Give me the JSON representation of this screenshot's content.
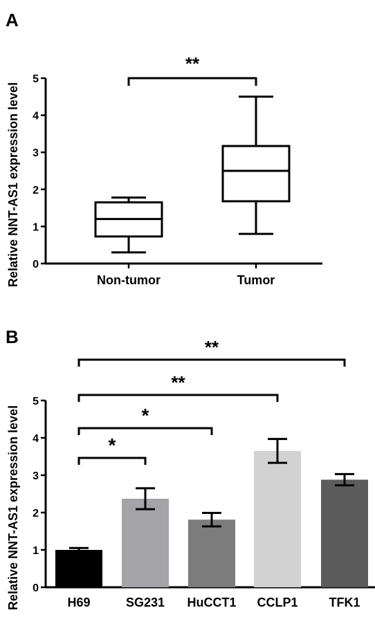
{
  "panels": {
    "a_label": "A",
    "b_label": "B"
  },
  "chart_data": [
    {
      "type": "box",
      "ylabel": "Relative NNT-AS1 expression level",
      "ylim": [
        0,
        5
      ],
      "yticks": [
        "0",
        "1",
        "2",
        "3",
        "4",
        "5"
      ],
      "categories": [
        "Non-tumor",
        "Tumor"
      ],
      "boxes": [
        {
          "category": "Non-tumor",
          "min": 0.3,
          "q1": 0.73,
          "median": 1.2,
          "q3": 1.65,
          "max": 1.78
        },
        {
          "category": "Tumor",
          "min": 0.8,
          "q1": 1.68,
          "median": 2.5,
          "q3": 3.17,
          "max": 4.5
        }
      ],
      "annotations": [
        {
          "from": 0,
          "to": 1,
          "label": "**"
        }
      ]
    },
    {
      "type": "bar",
      "ylabel": "Relative NNT-AS1 expression level",
      "ylim": [
        0,
        5
      ],
      "yticks": [
        "0",
        "1",
        "2",
        "3",
        "4",
        "5"
      ],
      "categories": [
        "H69",
        "SG231",
        "HuCCT1",
        "CCLP1",
        "TFK1"
      ],
      "values": [
        1.0,
        2.37,
        1.81,
        3.65,
        2.88
      ],
      "errors": [
        0.05,
        0.28,
        0.18,
        0.32,
        0.15
      ],
      "colors": [
        "#000000",
        "#a3a3a8",
        "#7c7c7c",
        "#d2d2d2",
        "#5c5c5c"
      ],
      "annotations": [
        {
          "from": 0,
          "to": 1,
          "label": "*"
        },
        {
          "from": 0,
          "to": 2,
          "label": "*"
        },
        {
          "from": 0,
          "to": 3,
          "label": "**"
        },
        {
          "from": 0,
          "to": 4,
          "label": "**"
        }
      ]
    }
  ]
}
